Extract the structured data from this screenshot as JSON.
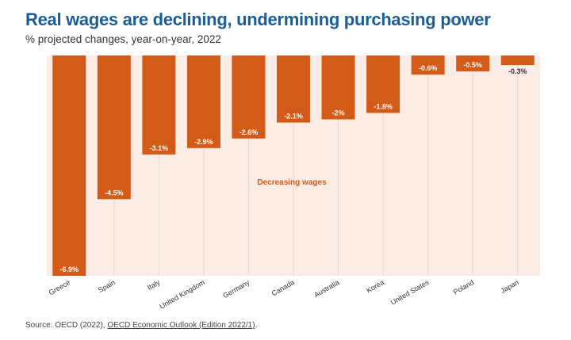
{
  "header": {
    "title": "Real wages are declining, undermining purchasing power",
    "subtitle": "% projected changes, year-on-year, 2022"
  },
  "colors": {
    "bar": "#d45a18",
    "region": "#fbece6",
    "title": "#1b5e96",
    "annotation": "#d45a18"
  },
  "chart_data": {
    "type": "bar",
    "title": "Real wages are declining, undermining purchasing power",
    "subtitle": "% projected changes, year-on-year, 2022",
    "categories": [
      "Greece",
      "Spain",
      "Italy",
      "United Kingdom",
      "Germany",
      "Canada",
      "Australia",
      "Korea",
      "United States",
      "Poland",
      "Japan"
    ],
    "values": [
      -6.9,
      -4.5,
      -3.1,
      -2.9,
      -2.6,
      -2.1,
      -2,
      -1.8,
      -0.6,
      -0.5,
      -0.3
    ],
    "labels": [
      "-6.9%",
      "-4.5%",
      "-3.1%",
      "-2.9%",
      "-2.6%",
      "-2.1%",
      "-2%",
      "-1.8%",
      "-0.6%",
      "-0.5%",
      "-0.3%"
    ],
    "ylim": [
      -6.9,
      0
    ],
    "xlabel": "",
    "ylabel": "",
    "grid": false,
    "annotation": "Decreasing wages"
  },
  "source": {
    "prefix": "Source: OECD (2022), ",
    "link_text": "OECD Economic Outlook (Edition 2022/1)",
    "suffix": "."
  }
}
